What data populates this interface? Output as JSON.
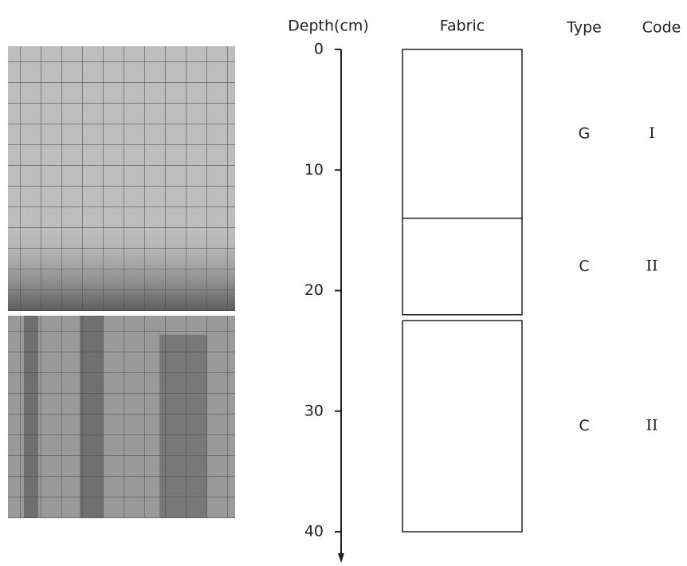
{
  "headers": {
    "depth": "Depth(cm)",
    "fabric": "Fabric",
    "type": "Type",
    "code": "Code"
  },
  "depth_axis": {
    "range": [
      0,
      40
    ],
    "ticks": [
      0,
      10,
      20,
      30,
      40
    ]
  },
  "layers": [
    {
      "top": 0,
      "bottom": 14,
      "type": "G",
      "code": "I"
    },
    {
      "top": 14,
      "bottom": 22,
      "type": "C",
      "code": "II"
    },
    {
      "top": 22.5,
      "bottom": 40,
      "type": "C",
      "code": "II"
    }
  ]
}
